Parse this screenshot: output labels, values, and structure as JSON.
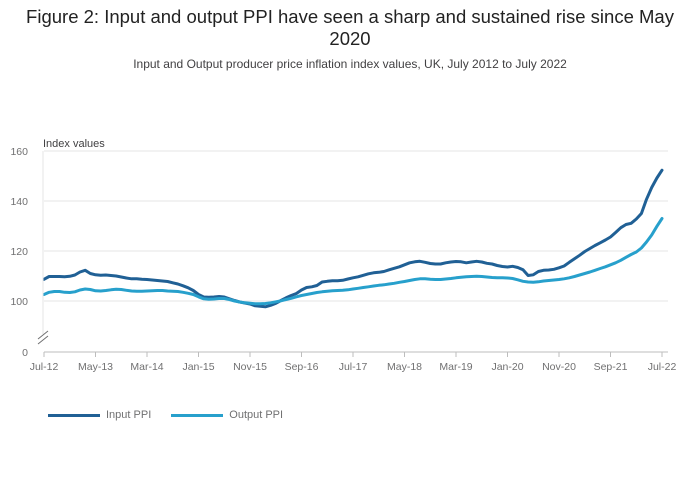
{
  "title": "Figure 2: Input and output PPI have seen a sharp and sustained rise since May 2020",
  "subtitle": "Input and Output producer price inflation index values, UK, July 2012 to July 2022",
  "chart_data": {
    "type": "line",
    "title": "Figure 2: Input and output PPI have seen a sharp and sustained rise since May 2020",
    "ylabel": "Index values",
    "xlabel": "",
    "ylim": [
      0,
      160
    ],
    "axis_break": "between 0 and 95",
    "y_ticks": [
      0,
      100,
      120,
      140,
      160
    ],
    "x_tick_labels": [
      "Jul-12",
      "May-13",
      "Mar-14",
      "Jan-15",
      "Nov-15",
      "Sep-16",
      "Jul-17",
      "May-18",
      "Mar-19",
      "Jan-20",
      "Nov-20",
      "Sep-21",
      "Jul-22"
    ],
    "x_tick_month_index": [
      0,
      10,
      20,
      30,
      40,
      50,
      60,
      70,
      80,
      90,
      100,
      110,
      120
    ],
    "x_start": "Jul-12",
    "x_end": "Jul-22",
    "series": [
      {
        "name": "Input PPI",
        "color": "#206095",
        "values": [
          108.7,
          109.8,
          109.8,
          109.8,
          109.7,
          109.9,
          110.4,
          111.6,
          112.3,
          111.0,
          110.5,
          110.3,
          110.4,
          110.2,
          110.0,
          109.6,
          109.2,
          108.9,
          108.9,
          108.7,
          108.6,
          108.4,
          108.2,
          108.0,
          107.8,
          107.3,
          106.8,
          106.1,
          105.3,
          104.2,
          102.6,
          101.6,
          101.5,
          101.6,
          101.8,
          101.6,
          100.9,
          100.2,
          99.6,
          99.2,
          98.8,
          98.1,
          97.9,
          97.7,
          98.3,
          99.1,
          100.2,
          101.3,
          102.2,
          103.0,
          104.4,
          105.4,
          105.7,
          106.2,
          107.6,
          107.9,
          108.1,
          108.1,
          108.3,
          108.8,
          109.3,
          109.7,
          110.3,
          110.9,
          111.3,
          111.5,
          111.8,
          112.5,
          113.1,
          113.7,
          114.5,
          115.3,
          115.7,
          115.9,
          115.5,
          115.0,
          114.8,
          114.8,
          115.3,
          115.6,
          115.8,
          115.7,
          115.3,
          115.6,
          115.9,
          115.6,
          115.1,
          114.8,
          114.2,
          113.8,
          113.6,
          113.9,
          113.4,
          112.5,
          110.2,
          110.5,
          111.8,
          112.3,
          112.4,
          112.7,
          113.3,
          114.0,
          115.5,
          116.9,
          118.3,
          119.8,
          121.0,
          122.2,
          123.3,
          124.4,
          125.6,
          127.4,
          129.3,
          130.6,
          131.1,
          132.8,
          135.0,
          140.7,
          145.4,
          149.2,
          152.3
        ]
      },
      {
        "name": "Output PPI",
        "color": "#27a0cc",
        "values": [
          102.6,
          103.5,
          103.8,
          103.8,
          103.5,
          103.4,
          103.7,
          104.4,
          104.8,
          104.6,
          104.1,
          104.0,
          104.2,
          104.5,
          104.7,
          104.6,
          104.3,
          104.0,
          103.9,
          103.9,
          104.0,
          104.1,
          104.2,
          104.2,
          104.0,
          103.9,
          103.8,
          103.5,
          103.1,
          102.6,
          101.7,
          100.9,
          100.7,
          100.8,
          101.0,
          101.0,
          100.6,
          100.0,
          99.6,
          99.3,
          99.1,
          98.9,
          98.9,
          99.0,
          99.3,
          99.7,
          100.1,
          100.6,
          101.1,
          101.7,
          102.2,
          102.6,
          103.0,
          103.4,
          103.7,
          103.9,
          104.1,
          104.2,
          104.3,
          104.5,
          104.8,
          105.1,
          105.4,
          105.7,
          106.0,
          106.3,
          106.5,
          106.8,
          107.1,
          107.5,
          107.8,
          108.2,
          108.6,
          108.9,
          108.9,
          108.7,
          108.6,
          108.6,
          108.8,
          109.0,
          109.3,
          109.5,
          109.7,
          109.8,
          109.9,
          109.8,
          109.6,
          109.4,
          109.3,
          109.3,
          109.2,
          109.0,
          108.5,
          107.9,
          107.6,
          107.5,
          107.7,
          108.0,
          108.2,
          108.4,
          108.6,
          108.9,
          109.3,
          109.8,
          110.4,
          111.0,
          111.6,
          112.3,
          113.0,
          113.7,
          114.5,
          115.3,
          116.3,
          117.5,
          118.6,
          119.6,
          121.2,
          123.6,
          126.4,
          129.9,
          133.0
        ]
      }
    ],
    "legend": {
      "position": "bottom-left",
      "entries": [
        "Input PPI",
        "Output PPI"
      ]
    }
  }
}
